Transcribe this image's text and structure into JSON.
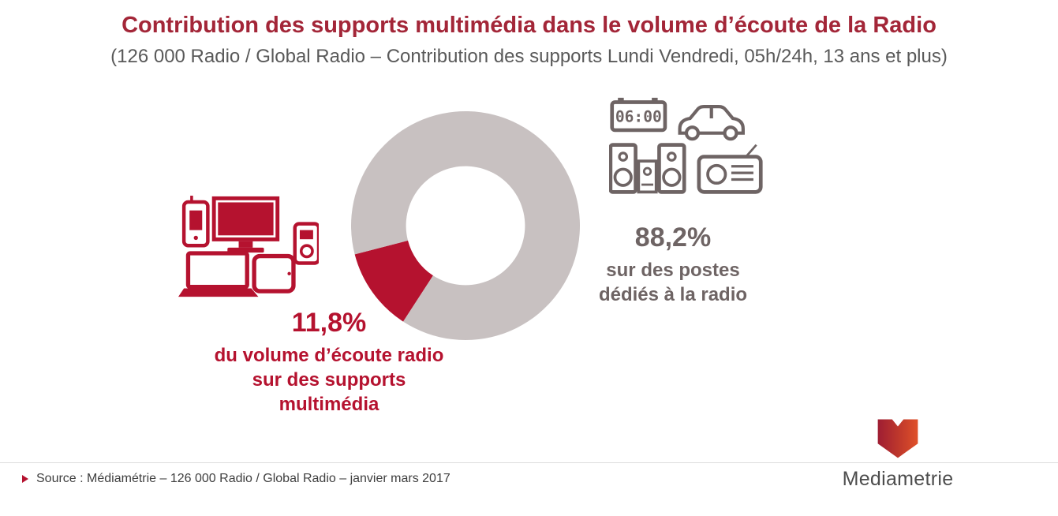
{
  "header": {
    "title": "Contribution des supports multimédia dans le volume d’écoute de la Radio",
    "subtitle": "(126 000 Radio / Global Radio – Contribution des supports Lundi Vendredi, 05h/24h, 13 ans et plus)"
  },
  "chart_data": {
    "type": "pie",
    "donut": true,
    "title": "Contribution des supports multimédia dans le volume d’écoute de la Radio",
    "slices": [
      {
        "label": "du volume d’écoute radio sur des supports multimédia",
        "value": 11.8,
        "display": "11,8%",
        "color": "#b5122f"
      },
      {
        "label": "sur des postes dédiés à la radio",
        "value": 88.2,
        "display": "88,2%",
        "color": "#c8c1c1"
      }
    ],
    "start_angle_deg": 213,
    "inner_radius_ratio": 0.52,
    "legend_position": "none"
  },
  "left_callout": {
    "value": "11,8%",
    "lines": [
      "du volume d’écoute radio",
      "sur des supports",
      "multimédia"
    ]
  },
  "right_callout": {
    "value": "88,2%",
    "lines": [
      "sur des postes",
      "dédiés à la radio"
    ]
  },
  "icons": {
    "clock_display": "06:00",
    "left_group": [
      "smartphone",
      "monitor",
      "mp3-player",
      "laptop",
      "tablet"
    ],
    "right_group": [
      "clock-radio",
      "car",
      "stereo",
      "portable-radio"
    ]
  },
  "footer": {
    "source": "Source : Médiamétrie –  126 000 Radio / Global Radio – janvier mars 2017",
    "logo_text": "Mediametrie"
  },
  "colors": {
    "title_red": "#a32638",
    "accent_red": "#b5122f",
    "slice_gray": "#c8c1c1",
    "device_gray": "#6e6464",
    "subtitle_gray": "#595959"
  }
}
